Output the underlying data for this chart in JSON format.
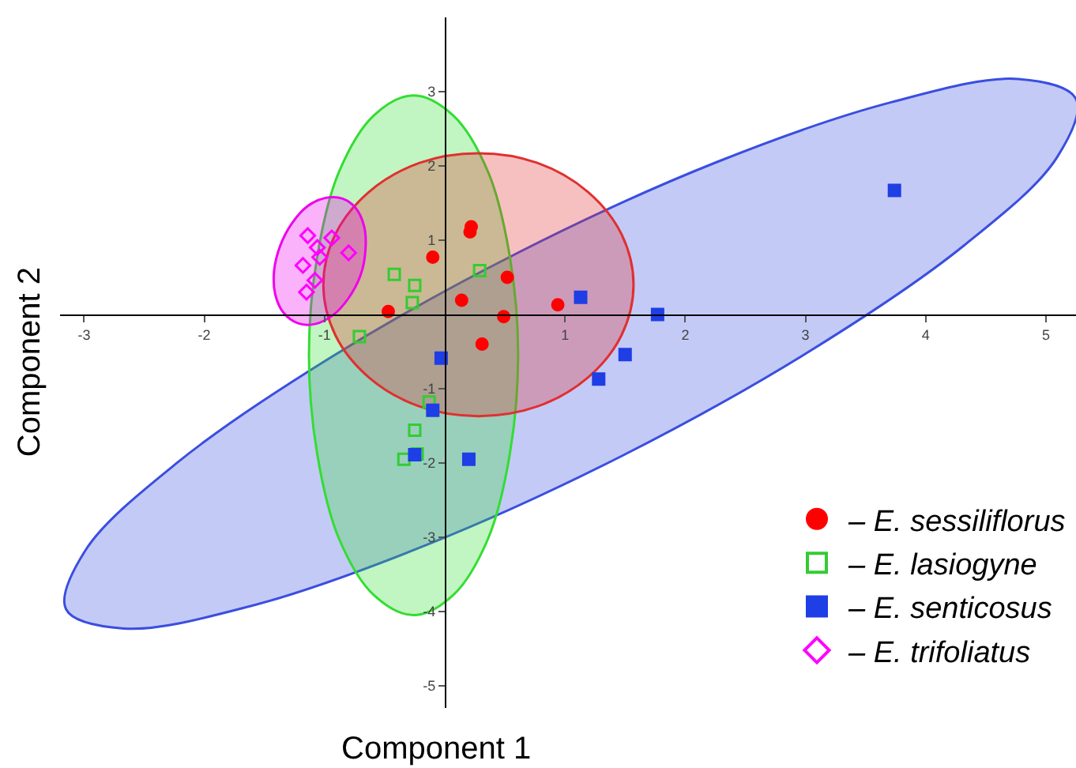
{
  "chart_data": {
    "type": "scatter",
    "xlabel": "Component 1",
    "ylabel": "Component 2",
    "xlim": [
      -3.2,
      5.25
    ],
    "ylim": [
      -5.3,
      4.0
    ],
    "xticks": [
      -3,
      -2,
      -1,
      1,
      2,
      3,
      4,
      5
    ],
    "yticks": [
      -5,
      -4,
      -3,
      -2,
      -1,
      1,
      2,
      3
    ],
    "legend": "bottom right",
    "series": [
      {
        "type": "area",
        "color": "#3a4ee0",
        "x": [
          5.25,
          5.09,
          4.32,
          3.05,
          1.48,
          -0.16,
          -1.62,
          -2.67,
          -3.15,
          -2.99,
          -2.22,
          -0.95,
          0.62,
          2.26,
          3.72,
          4.77,
          5.25
        ],
        "values": [
          2.9,
          2.11,
          0.93,
          -0.48,
          -1.9,
          -3.11,
          -3.93,
          -4.23,
          -3.97,
          -3.18,
          -1.99,
          -0.58,
          0.84,
          2.05,
          2.86,
          3.17,
          2.9
        ]
      },
      {
        "type": "area",
        "color": "#33dd33",
        "x": [
          0.61,
          0.54,
          0.36,
          0.07,
          -0.26,
          -0.59,
          -0.88,
          -1.06,
          -1.13,
          -1.06,
          -0.88,
          -0.59,
          -0.26,
          0.07,
          0.36,
          0.54,
          0.61
        ],
        "values": [
          -0.55,
          0.79,
          1.92,
          2.68,
          2.95,
          2.68,
          1.92,
          0.79,
          -0.55,
          -1.89,
          -3.02,
          -3.78,
          -4.05,
          -3.78,
          -3.02,
          -1.89,
          -0.55
        ]
      },
      {
        "type": "area",
        "color": "#e03030",
        "x": [
          1.57,
          1.47,
          1.19,
          0.77,
          0.28,
          -0.21,
          -0.63,
          -0.91,
          -1.01,
          -0.91,
          -0.63,
          -0.21,
          0.28,
          0.77,
          1.19,
          1.47,
          1.57
        ],
        "values": [
          0.4,
          1.08,
          1.65,
          2.04,
          2.17,
          2.04,
          1.65,
          1.08,
          0.4,
          -0.28,
          -0.85,
          -1.24,
          -1.37,
          -1.24,
          -0.85,
          -0.28,
          0.4
        ]
      },
      {
        "type": "area",
        "color": "#ee00ee",
        "x": [
          -0.85,
          -0.74,
          -0.67,
          -0.66,
          -0.7,
          -0.8,
          -0.93,
          -1.08,
          -1.22,
          -1.34,
          -1.41,
          -1.42,
          -1.37,
          -1.27,
          -1.14,
          -0.99,
          -0.85
        ],
        "values": [
          1.56,
          1.43,
          1.18,
          0.86,
          0.53,
          0.22,
          -0.01,
          -0.13,
          -0.12,
          0.02,
          0.27,
          0.58,
          0.92,
          1.23,
          1.46,
          1.57,
          1.56
        ]
      },
      {
        "name": "– E. sessiliflorus",
        "color": "#ff0000",
        "marker": "circle",
        "x": [
          0.22,
          0.21,
          -0.1,
          0.52,
          0.14,
          -0.47,
          0.49,
          0.31,
          0.94
        ],
        "values": [
          1.18,
          1.11,
          0.77,
          0.5,
          0.19,
          0.04,
          -0.03,
          -0.4,
          0.13
        ]
      },
      {
        "name": "– E. lasiogyne",
        "color": "#33cc33",
        "marker": "square-open",
        "x": [
          -0.42,
          -0.25,
          -0.27,
          0.29,
          -0.71,
          -0.13,
          -0.25,
          -0.23,
          -0.34
        ],
        "values": [
          0.54,
          0.39,
          0.16,
          0.59,
          -0.3,
          -1.18,
          -1.56,
          -1.88,
          -1.95
        ]
      },
      {
        "name": "– E. senticosus",
        "color": "#1e3ee6",
        "marker": "square",
        "x": [
          -0.03,
          -0.1,
          -0.25,
          0.2,
          1.13,
          1.77,
          1.5,
          1.28,
          3.74
        ],
        "values": [
          -0.59,
          -1.29,
          -1.89,
          -1.95,
          0.23,
          0.0,
          -0.54,
          -0.87,
          1.67
        ]
      },
      {
        "name": "– E. trifoliatus",
        "color": "#ff00ff",
        "marker": "diamond-open",
        "x": [
          -1.14,
          -0.94,
          -1.06,
          -1.04,
          -0.8,
          -1.18,
          -1.08,
          -1.15
        ],
        "values": [
          1.06,
          1.03,
          0.9,
          0.77,
          0.83,
          0.66,
          0.46,
          0.3
        ]
      }
    ]
  }
}
